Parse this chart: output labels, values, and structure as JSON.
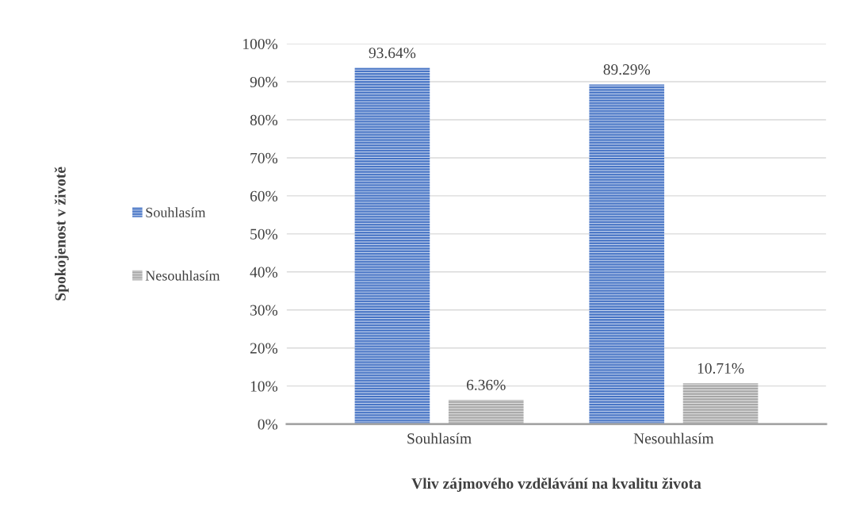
{
  "chart_data": {
    "type": "bar",
    "xlabel": "Vliv zájmového vzdělávání na kvalitu života",
    "annotations": [
      "Spokojenost v životě"
    ],
    "categories": [
      "Souhlasím",
      "Nesouhlasím"
    ],
    "series": [
      {
        "name": "Souhlasím",
        "color": "#4472c4",
        "values": [
          93.64,
          89.29
        ],
        "value_labels": [
          "93.64%",
          "89.29%"
        ]
      },
      {
        "name": "Nesouhlasím",
        "color": "#a5a5a5",
        "values": [
          6.36,
          10.71
        ],
        "value_labels": [
          "6.36%",
          "10.71%"
        ]
      }
    ],
    "ylim": [
      0,
      100
    ],
    "yticks": [
      {
        "value": 0,
        "label": "0%"
      },
      {
        "value": 10,
        "label": "10%"
      },
      {
        "value": 20,
        "label": "20%"
      },
      {
        "value": 30,
        "label": "30%"
      },
      {
        "value": 40,
        "label": "40%"
      },
      {
        "value": 50,
        "label": "50%"
      },
      {
        "value": 60,
        "label": "60%"
      },
      {
        "value": 70,
        "label": "70%"
      },
      {
        "value": 80,
        "label": "80%"
      },
      {
        "value": 90,
        "label": "90%"
      },
      {
        "value": 100,
        "label": "100%"
      }
    ],
    "grid": "y",
    "legend": "left"
  }
}
